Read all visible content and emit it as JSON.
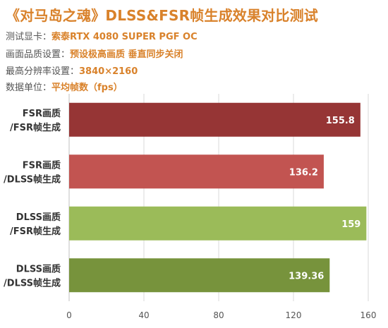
{
  "chart_data": {
    "type": "bar",
    "orientation": "horizontal",
    "title": "《对马岛之魂》DLSS&FSR帧生成效果对比测试",
    "info": [
      {
        "key": "测试显卡：",
        "value": "索泰RTX  4080 SUPER PGF OC"
      },
      {
        "key": "画面品质设置：",
        "value": "预设极高画质   垂直同步关闭"
      },
      {
        "key": "最高分辨率设置：",
        "value": "3840×2160"
      },
      {
        "key": "数据单位：",
        "value": "平均帧数（fps）"
      }
    ],
    "categories": [
      [
        "FSR画质",
        "/FSR帧生成"
      ],
      [
        "FSR画质",
        "/DLSS帧生成"
      ],
      [
        "DLSS画质",
        "/FSR帧生成"
      ],
      [
        "DLSS画质",
        "/DLSS帧生成"
      ]
    ],
    "values": [
      155.8,
      136.2,
      159,
      139.36
    ],
    "value_labels": [
      "155.8",
      "136.2",
      "159",
      "139.36"
    ],
    "colors": [
      "#963535",
      "#c25451",
      "#9bbb59",
      "#77933c"
    ],
    "xlim": [
      0,
      160
    ],
    "xticks": [
      "0",
      "40",
      "80",
      "120",
      "160"
    ],
    "grid": true
  }
}
